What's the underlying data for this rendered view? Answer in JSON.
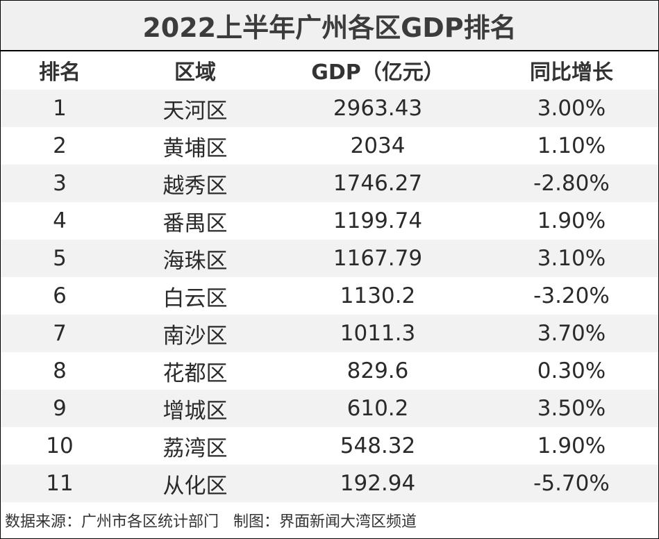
{
  "header": {
    "title": "2022上半年广州各区GDP排名"
  },
  "table": {
    "columns": [
      "排名",
      "区域",
      "GDP（亿元）",
      "同比增长"
    ],
    "rows": [
      [
        "1",
        "天河区",
        "2963.43",
        "3.00%"
      ],
      [
        "2",
        "黄埔区",
        "2034",
        "1.10%"
      ],
      [
        "3",
        "越秀区",
        "1746.27",
        "-2.80%"
      ],
      [
        "4",
        "番禺区",
        "1199.74",
        "1.90%"
      ],
      [
        "5",
        "海珠区",
        "1167.79",
        "3.10%"
      ],
      [
        "6",
        "白云区",
        "1130.2",
        "-3.20%"
      ],
      [
        "7",
        "南沙区",
        "1011.3",
        "3.70%"
      ],
      [
        "8",
        "花都区",
        "829.6",
        "0.30%"
      ],
      [
        "9",
        "增城区",
        "610.2",
        "3.50%"
      ],
      [
        "10",
        "荔湾区",
        "548.32",
        "1.90%"
      ],
      [
        "11",
        "从化区",
        "192.94",
        "-5.70%"
      ]
    ]
  },
  "footer": {
    "text": "数据来源：广州市各区统计部门   制图：界面新闻大湾区频道"
  }
}
